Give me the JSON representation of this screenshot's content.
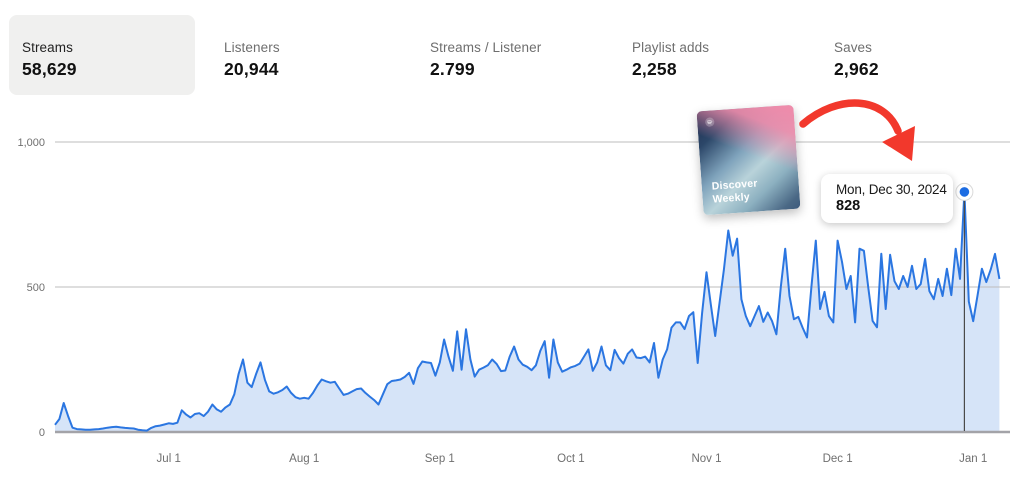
{
  "stats": {
    "items": [
      {
        "label": "Streams",
        "value": "58,629",
        "selected": true
      },
      {
        "label": "Listeners",
        "value": "20,944",
        "selected": false
      },
      {
        "label": "Streams / Listener",
        "value": "2.799",
        "selected": false
      },
      {
        "label": "Playlist adds",
        "value": "2,258",
        "selected": false
      },
      {
        "label": "Saves",
        "value": "2,962",
        "selected": false
      }
    ]
  },
  "chart_data": {
    "type": "area",
    "ylabel": "",
    "xlabel": "",
    "ylim": [
      0,
      1000
    ],
    "grid": true,
    "yticks": [
      {
        "value": 0,
        "label": "0"
      },
      {
        "value": 500,
        "label": "500"
      },
      {
        "value": 1000,
        "label": "1,000"
      }
    ],
    "xticks": [
      {
        "day": 26,
        "label": "Jul 1"
      },
      {
        "day": 57,
        "label": "Aug 1"
      },
      {
        "day": 88,
        "label": "Sep 1"
      },
      {
        "day": 118,
        "label": "Oct 1"
      },
      {
        "day": 149,
        "label": "Nov 1"
      },
      {
        "day": 179,
        "label": "Dec 1"
      },
      {
        "day": 210,
        "label": "Jan 1"
      }
    ],
    "values": [
      25,
      45,
      100,
      55,
      15,
      10,
      9,
      8,
      8,
      9,
      10,
      12,
      15,
      17,
      18,
      16,
      14,
      13,
      12,
      8,
      6,
      5,
      14,
      20,
      22,
      26,
      30,
      28,
      32,
      75,
      60,
      50,
      62,
      65,
      55,
      70,
      95,
      78,
      70,
      85,
      95,
      130,
      200,
      250,
      170,
      155,
      200,
      240,
      180,
      140,
      132,
      137,
      145,
      157,
      135,
      120,
      115,
      118,
      115,
      135,
      160,
      181,
      175,
      170,
      173,
      150,
      128,
      132,
      140,
      148,
      150,
      135,
      122,
      110,
      95,
      130,
      165,
      176,
      178,
      181,
      190,
      204,
      166,
      220,
      243,
      240,
      238,
      194,
      240,
      319,
      260,
      211,
      347,
      215,
      354,
      250,
      191,
      215,
      222,
      230,
      250,
      235,
      210,
      212,
      260,
      295,
      250,
      232,
      225,
      213,
      230,
      280,
      313,
      187,
      319,
      240,
      208,
      215,
      223,
      228,
      236,
      260,
      285,
      211,
      240,
      295,
      230,
      213,
      283,
      255,
      236,
      270,
      285,
      257,
      255,
      260,
      240,
      307,
      187,
      250,
      285,
      360,
      378,
      378,
      355,
      400,
      413,
      238,
      410,
      551,
      440,
      331,
      447,
      560,
      695,
      608,
      667,
      458,
      400,
      365,
      400,
      434,
      380,
      412,
      383,
      337,
      500,
      632,
      469,
      389,
      397,
      360,
      326,
      500,
      660,
      424,
      483,
      400,
      378,
      660,
      587,
      493,
      538,
      378,
      632,
      625,
      500,
      383,
      361,
      615,
      424,
      611,
      520,
      493,
      538,
      500,
      573,
      493,
      510,
      597,
      486,
      458,
      528,
      469,
      563,
      472,
      632,
      528,
      828,
      450,
      382,
      470,
      563,
      517,
      560,
      614,
      528
    ],
    "selected_point": {
      "index": 208,
      "date_label": "Mon, Dec 30, 2024",
      "value": 828
    },
    "colors": {
      "line": "#2b76e1",
      "fill": "#d6e4f8",
      "grid": "#bdbdbd",
      "baseline": "#a3a3a8",
      "axis_text": "#6f6f6f",
      "marker_fill": "#1c6ce2",
      "marker_line": "#4a4a4a"
    }
  },
  "annotations": {
    "playlist_card": {
      "line1": "Discover",
      "line2": "Weekly"
    },
    "arrow_color": "#f2382c"
  }
}
